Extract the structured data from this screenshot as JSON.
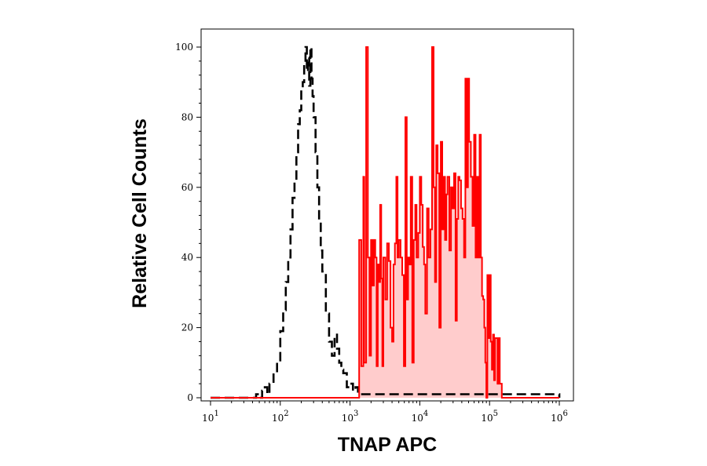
{
  "chart_data": {
    "type": "area",
    "xlabel": "TNAP APC",
    "ylabel": "Relative Cell Counts",
    "x_scale": "log",
    "xlim": [
      10,
      1000000
    ],
    "ylim": [
      0,
      100
    ],
    "x_ticks": [
      {
        "base": "10",
        "exp": "1"
      },
      {
        "base": "10",
        "exp": "2"
      },
      {
        "base": "10",
        "exp": "3"
      },
      {
        "base": "10",
        "exp": "4"
      },
      {
        "base": "10",
        "exp": "5"
      },
      {
        "base": "10",
        "exp": "6"
      }
    ],
    "y_ticks": [
      "0",
      "20",
      "40",
      "60",
      "80",
      "100"
    ],
    "grid": false,
    "series": [
      {
        "style": "dashed",
        "color": "#000000",
        "fill": "none",
        "x": [
          10,
          40,
          45,
          50,
          55,
          60,
          65,
          70,
          80,
          90,
          100,
          110,
          120,
          130,
          140,
          150,
          160,
          170,
          180,
          190,
          200,
          210,
          220,
          230,
          240,
          250,
          260,
          270,
          280,
          290,
          300,
          320,
          340,
          360,
          380,
          400,
          450,
          500,
          550,
          600,
          650,
          700,
          750,
          800,
          900,
          1000,
          1100,
          1200,
          1300,
          1000000
        ],
        "y": [
          0,
          0,
          1,
          0,
          2,
          3,
          1,
          4,
          7,
          10,
          19,
          25,
          33,
          40,
          48,
          57,
          62,
          70,
          78,
          82,
          88,
          90,
          95,
          100,
          93,
          97,
          89,
          100,
          91,
          86,
          80,
          70,
          60,
          50,
          42,
          36,
          24,
          16,
          12,
          18,
          14,
          10,
          8,
          7,
          3,
          4,
          2,
          3,
          1,
          0
        ]
      },
      {
        "style": "solid",
        "color": "#ff0000",
        "fill": "#ffcccc",
        "x": [
          10,
          1300,
          1350,
          1450,
          1550,
          1600,
          1700,
          1800,
          1900,
          2000,
          2100,
          2200,
          2300,
          2400,
          2500,
          2600,
          2700,
          2800,
          2900,
          3000,
          3200,
          3400,
          3600,
          3800,
          4000,
          4200,
          4400,
          4600,
          4800,
          5000,
          5300,
          5600,
          5900,
          6200,
          6500,
          6800,
          7100,
          7400,
          7800,
          8200,
          8600,
          9000,
          9500,
          10000,
          10500,
          11000,
          11500,
          12000,
          12700,
          13400,
          14200,
          15000,
          15800,
          16500,
          17200,
          18000,
          19000,
          20000,
          21000,
          22000,
          23000,
          24000,
          25000,
          26500,
          28000,
          29500,
          31000,
          32500,
          34000,
          35500,
          37000,
          39000,
          41000,
          43000,
          45000,
          47000,
          49000,
          51000,
          54000,
          57000,
          60000,
          63000,
          66000,
          69000,
          72000,
          75000,
          78000,
          81000,
          84000,
          87000,
          90000,
          93000,
          96000,
          100000,
          104000,
          108000,
          112000,
          116000,
          120000,
          125000,
          130000,
          135000,
          140000,
          150000,
          1000000
        ],
        "y": [
          0,
          0,
          45,
          9,
          63,
          10,
          100,
          40,
          12,
          45,
          32,
          45,
          40,
          9,
          38,
          33,
          55,
          34,
          9,
          40,
          28,
          44,
          39,
          20,
          16,
          38,
          44,
          63,
          40,
          45,
          40,
          35,
          9,
          80,
          28,
          40,
          38,
          63,
          10,
          45,
          55,
          40,
          47,
          63,
          55,
          43,
          38,
          24,
          54,
          40,
          48,
          100,
          60,
          33,
          72,
          64,
          20,
          73,
          48,
          63,
          45,
          58,
          63,
          42,
          60,
          54,
          64,
          22,
          51,
          63,
          62,
          54,
          51,
          40,
          91,
          60,
          91,
          73,
          63,
          49,
          75,
          40,
          63,
          40,
          75,
          40,
          29,
          28,
          20,
          10,
          0,
          35,
          17,
          35,
          16,
          8,
          18,
          5,
          17,
          17,
          4,
          17,
          4,
          0,
          0
        ]
      }
    ]
  }
}
